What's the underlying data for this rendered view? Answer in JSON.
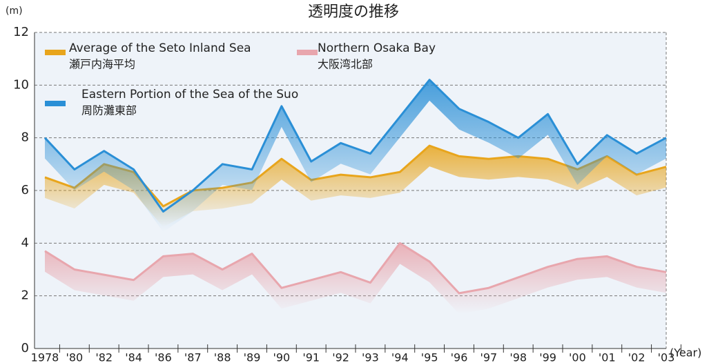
{
  "chart_data": {
    "type": "line",
    "title": "透明度の推移",
    "y_unit": "(m)",
    "x_label": "(Year)",
    "categories": [
      "1978",
      "'80",
      "'82",
      "'84",
      "'86",
      "'87",
      "'88",
      "'89",
      "'90",
      "'91",
      "'92",
      "'93",
      "'94",
      "'95",
      "'96",
      "'97",
      "'98",
      "'99",
      "'00",
      "'01",
      "'02",
      "'03"
    ],
    "series": [
      {
        "name": "Average of the Seto Inland Sea",
        "name_ja": "瀬戸内海平均",
        "color": "#e8a51c",
        "values": [
          6.5,
          6.1,
          7.0,
          6.7,
          5.4,
          6.0,
          6.1,
          6.3,
          7.2,
          6.4,
          6.6,
          6.5,
          6.7,
          7.7,
          7.3,
          7.2,
          7.3,
          7.2,
          6.8,
          7.3,
          6.6,
          6.9
        ]
      },
      {
        "name": "Northern Osaka Bay",
        "name_ja": "大阪湾北部",
        "color": "#e8a6ad",
        "values": [
          3.7,
          3.0,
          2.8,
          2.6,
          3.5,
          3.6,
          3.0,
          3.6,
          2.3,
          2.6,
          2.9,
          2.5,
          4.0,
          3.3,
          2.1,
          2.3,
          2.7,
          3.1,
          3.4,
          3.5,
          3.1,
          2.9
        ]
      },
      {
        "name": "Eastern Portion of the Sea of the Suo",
        "name_ja": "周防灘東部",
        "color": "#2a8fd6",
        "values": [
          8.0,
          6.8,
          7.5,
          6.8,
          5.2,
          6.0,
          7.0,
          6.8,
          9.2,
          7.1,
          7.8,
          7.4,
          8.8,
          10.2,
          9.1,
          8.6,
          8.0,
          8.9,
          7.0,
          8.1,
          7.4,
          8.0
        ]
      }
    ],
    "ylim": [
      0,
      12
    ],
    "yticks": [
      0,
      2,
      4,
      6,
      8,
      10,
      12
    ],
    "grid": true
  }
}
